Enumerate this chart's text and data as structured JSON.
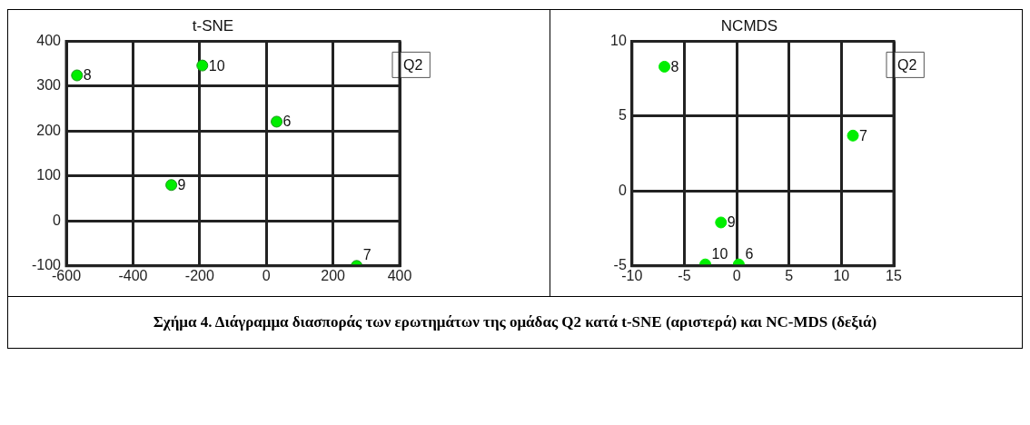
{
  "chart_data": [
    {
      "type": "scatter",
      "title": "t-SNE",
      "legend": "top right",
      "marker": "circle",
      "grid": true,
      "series": [
        {
          "name": "Q2",
          "color": "#00ee00",
          "x": [
            31,
            271,
            -568,
            -285,
            -192
          ],
          "values": [
            221,
            -100,
            324,
            80,
            346
          ]
        }
      ],
      "xlim": [
        -600,
        400
      ],
      "xticks": [
        -600,
        -400,
        -200,
        0,
        200,
        400
      ],
      "ylim": [
        -100,
        400
      ],
      "yticks": [
        -100,
        0,
        100,
        200,
        300,
        400
      ],
      "annotations": [
        {
          "text": "6",
          "x": 31,
          "y": 221
        },
        {
          "text": "7",
          "x": 271,
          "y": -100
        },
        {
          "text": "8",
          "x": -568,
          "y": 324
        },
        {
          "text": "9",
          "x": -285,
          "y": 80
        },
        {
          "text": "10",
          "x": -192,
          "y": 346
        }
      ]
    },
    {
      "type": "scatter",
      "title": "NCMDS",
      "legend": "top right",
      "marker": "circle",
      "grid": true,
      "series": [
        {
          "name": "Q2",
          "color": "#00ee00",
          "x": [
            0.2,
            11.1,
            -6.9,
            -1.5,
            -3.0
          ],
          "values": [
            -4.9,
            3.7,
            8.3,
            -2.1,
            -4.9
          ]
        }
      ],
      "xlim": [
        -10,
        15
      ],
      "xticks": [
        -10,
        -5,
        0,
        5,
        10,
        15
      ],
      "ylim": [
        -5,
        10
      ],
      "yticks": [
        -5,
        0,
        5,
        10
      ],
      "annotations": [
        {
          "text": "6",
          "x": 0.2,
          "y": -4.9
        },
        {
          "text": "7",
          "x": 11.1,
          "y": 3.7
        },
        {
          "text": "8",
          "x": -6.9,
          "y": 8.3
        },
        {
          "text": "9",
          "x": -1.5,
          "y": -2.1
        },
        {
          "text": "10",
          "x": -3.0,
          "y": -4.9
        }
      ]
    },
    {
      "type": "other",
      "annotations": [
        "Σχήμα 4. Διάγραμμα διασποράς των ερωτημάτων της ομάδας Q2 κατά t-SNE (αριστερά) και NC-MDS (δεξιά)"
      ]
    }
  ]
}
